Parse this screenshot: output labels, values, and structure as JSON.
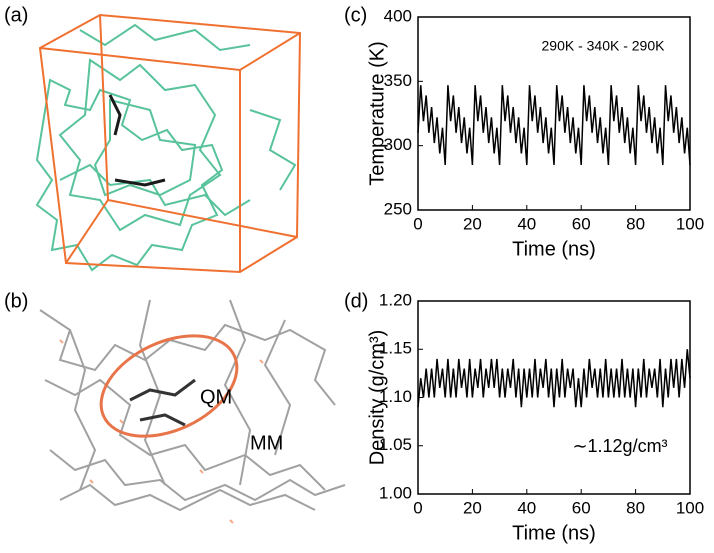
{
  "panel_labels": [
    "(a)",
    "(b)",
    "(c)",
    "(d)"
  ],
  "annotations": {
    "qm": "QM",
    "mm": "MM"
  },
  "chart_data": [
    {
      "type": "line",
      "xlabel": "Time (ns)",
      "ylabel": "Temperature (K)",
      "annotation": "290K - 340K - 290K",
      "xlim": [
        0,
        100
      ],
      "xticks": [
        0,
        20,
        40,
        60,
        80,
        100
      ],
      "ylim": [
        250,
        400
      ],
      "yticks": [
        250,
        300,
        350,
        400
      ],
      "series": [
        {
          "color": "#000000",
          "x": [
            0,
            1,
            2,
            3,
            4,
            5,
            6,
            7,
            8,
            9,
            10,
            11,
            12,
            13,
            14,
            15,
            16,
            17,
            18,
            19,
            20,
            21,
            22,
            23,
            24,
            25,
            26,
            27,
            28,
            29,
            30,
            31,
            32,
            33,
            34,
            35,
            36,
            37,
            38,
            39,
            40,
            41,
            42,
            43,
            44,
            45,
            46,
            47,
            48,
            49,
            50,
            51,
            52,
            53,
            54,
            55,
            56,
            57,
            58,
            59,
            60,
            61,
            62,
            63,
            64,
            65,
            66,
            67,
            68,
            69,
            70,
            71,
            72,
            73,
            74,
            75,
            76,
            77,
            78,
            79,
            80,
            81,
            82,
            83,
            84,
            85,
            86,
            87,
            88,
            89,
            90,
            91,
            92,
            93,
            94,
            95,
            96,
            97,
            98,
            99,
            100
          ],
          "values": [
            310,
            347,
            319,
            339,
            310,
            330,
            302,
            322,
            294,
            314,
            285,
            347,
            319,
            339,
            310,
            330,
            302,
            322,
            294,
            314,
            285,
            347,
            319,
            339,
            310,
            330,
            302,
            322,
            294,
            314,
            285,
            347,
            319,
            339,
            310,
            330,
            302,
            322,
            294,
            314,
            285,
            347,
            319,
            339,
            310,
            330,
            302,
            322,
            294,
            314,
            285,
            347,
            319,
            339,
            310,
            330,
            302,
            322,
            294,
            314,
            285,
            347,
            319,
            339,
            310,
            330,
            302,
            322,
            294,
            314,
            285,
            347,
            319,
            339,
            310,
            330,
            302,
            322,
            294,
            314,
            285,
            347,
            319,
            339,
            310,
            330,
            302,
            322,
            294,
            314,
            285,
            347,
            319,
            339,
            310,
            330,
            302,
            322,
            294,
            314,
            285
          ]
        }
      ]
    },
    {
      "type": "line",
      "xlabel": "Time (ns)",
      "ylabel": "Density (g/cm³)",
      "annotation": "∼1.12g/cm³",
      "xlim": [
        0,
        100
      ],
      "xticks": [
        0,
        20,
        40,
        60,
        80,
        100
      ],
      "ylim": [
        1.0,
        1.2
      ],
      "yticks": [
        {
          "value": 1.0,
          "label": "1.00"
        },
        1.05,
        {
          "value": 1.1,
          "label": "1.10"
        },
        1.15,
        {
          "value": 1.2,
          "label": "1.20"
        }
      ],
      "series": [
        {
          "color": "#000000",
          "x": [
            0,
            1,
            2,
            3,
            4,
            5,
            6,
            7,
            8,
            9,
            10,
            11,
            12,
            13,
            14,
            15,
            16,
            17,
            18,
            19,
            20,
            21,
            22,
            23,
            24,
            25,
            26,
            27,
            28,
            29,
            30,
            31,
            32,
            33,
            34,
            35,
            36,
            37,
            38,
            39,
            40,
            41,
            42,
            43,
            44,
            45,
            46,
            47,
            48,
            49,
            50,
            51,
            52,
            53,
            54,
            55,
            56,
            57,
            58,
            59,
            60,
            61,
            62,
            63,
            64,
            65,
            66,
            67,
            68,
            69,
            70,
            71,
            72,
            73,
            74,
            75,
            76,
            77,
            78,
            79,
            80,
            81,
            82,
            83,
            84,
            85,
            86,
            87,
            88,
            89,
            90,
            91,
            92,
            93,
            94,
            95,
            96,
            97,
            98,
            99,
            100
          ],
          "values": [
            1.09,
            1.12,
            1.1,
            1.13,
            1.1,
            1.13,
            1.1,
            1.14,
            1.11,
            1.13,
            1.1,
            1.14,
            1.1,
            1.13,
            1.1,
            1.14,
            1.11,
            1.13,
            1.1,
            1.14,
            1.1,
            1.13,
            1.11,
            1.14,
            1.1,
            1.13,
            1.11,
            1.14,
            1.11,
            1.14,
            1.1,
            1.13,
            1.1,
            1.13,
            1.11,
            1.14,
            1.1,
            1.13,
            1.09,
            1.13,
            1.1,
            1.13,
            1.1,
            1.14,
            1.1,
            1.13,
            1.11,
            1.14,
            1.1,
            1.13,
            1.09,
            1.13,
            1.1,
            1.14,
            1.1,
            1.13,
            1.11,
            1.13,
            1.09,
            1.12,
            1.09,
            1.13,
            1.1,
            1.14,
            1.11,
            1.13,
            1.1,
            1.13,
            1.1,
            1.14,
            1.1,
            1.13,
            1.1,
            1.13,
            1.1,
            1.14,
            1.1,
            1.13,
            1.1,
            1.13,
            1.09,
            1.13,
            1.1,
            1.14,
            1.1,
            1.13,
            1.11,
            1.13,
            1.1,
            1.14,
            1.09,
            1.13,
            1.1,
            1.14,
            1.11,
            1.14,
            1.1,
            1.14,
            1.11,
            1.15,
            1.12
          ]
        }
      ]
    }
  ]
}
